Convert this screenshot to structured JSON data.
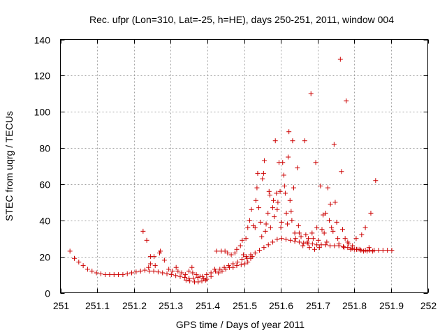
{
  "chart_data": {
    "type": "scatter",
    "title": "Rec. ufpr (Lon=310, Lat=-25, h=HE), days 250-251, 2011, window 004",
    "xlabel": "GPS time / Days of year 2011",
    "ylabel": "STEC from uqrg / TECUs",
    "xlim": [
      251,
      252
    ],
    "ylim": [
      0,
      140
    ],
    "x_ticks": [
      251,
      251.1,
      251.2,
      251.3,
      251.4,
      251.5,
      251.6,
      251.7,
      251.8,
      251.9,
      252
    ],
    "x_tick_labels": [
      "251",
      "251.1",
      "251.2",
      "251.3",
      "251.4",
      "251.5",
      "251.6",
      "251.7",
      "251.8",
      "251.9",
      "252"
    ],
    "y_ticks": [
      0,
      20,
      40,
      60,
      80,
      100,
      120,
      140
    ],
    "y_tick_labels": [
      "0",
      "20",
      "40",
      "60",
      "80",
      "100",
      "120",
      "140"
    ],
    "grid": true,
    "marker": "+",
    "color": "#cc0000",
    "series": [
      {
        "name": "STEC",
        "points": [
          [
            251.026,
            23
          ],
          [
            251.038,
            19
          ],
          [
            251.05,
            17
          ],
          [
            251.062,
            15
          ],
          [
            251.074,
            13
          ],
          [
            251.086,
            12
          ],
          [
            251.098,
            11
          ],
          [
            251.11,
            10.5
          ],
          [
            251.122,
            10
          ],
          [
            251.134,
            10
          ],
          [
            251.146,
            10
          ],
          [
            251.158,
            10
          ],
          [
            251.17,
            10
          ],
          [
            251.182,
            10.5
          ],
          [
            251.194,
            11
          ],
          [
            251.206,
            11.5
          ],
          [
            251.218,
            12
          ],
          [
            251.23,
            12.5
          ],
          [
            251.242,
            12
          ],
          [
            251.254,
            12
          ],
          [
            251.266,
            11.5
          ],
          [
            251.278,
            11
          ],
          [
            251.29,
            10.5
          ],
          [
            251.302,
            10
          ],
          [
            251.314,
            9.5
          ],
          [
            251.326,
            9
          ],
          [
            251.338,
            8.5
          ],
          [
            251.35,
            8
          ],
          [
            251.362,
            8
          ],
          [
            251.374,
            8.5
          ],
          [
            251.386,
            9
          ],
          [
            251.398,
            10
          ],
          [
            251.41,
            11
          ],
          [
            251.422,
            12
          ],
          [
            251.434,
            13
          ],
          [
            251.446,
            14
          ],
          [
            251.458,
            15
          ],
          [
            251.47,
            16
          ],
          [
            251.482,
            17
          ],
          [
            251.494,
            18.5
          ],
          [
            251.506,
            20
          ],
          [
            251.518,
            21
          ],
          [
            251.53,
            22
          ],
          [
            251.542,
            23.5
          ],
          [
            251.554,
            25
          ],
          [
            251.566,
            26.5
          ],
          [
            251.578,
            28
          ],
          [
            251.59,
            29.5
          ],
          [
            251.602,
            30
          ],
          [
            251.614,
            29.5
          ],
          [
            251.626,
            29
          ],
          [
            251.638,
            28.5
          ],
          [
            251.65,
            28
          ],
          [
            251.662,
            27.5
          ],
          [
            251.674,
            27
          ],
          [
            251.686,
            27
          ],
          [
            251.698,
            26.5
          ],
          [
            251.71,
            26.5
          ],
          [
            251.722,
            26.5
          ],
          [
            251.734,
            26
          ],
          [
            251.746,
            26
          ],
          [
            251.758,
            26
          ],
          [
            251.77,
            25.5
          ],
          [
            251.782,
            25
          ],
          [
            251.794,
            24.5
          ],
          [
            251.806,
            24
          ],
          [
            251.818,
            23.5
          ],
          [
            251.83,
            23.5
          ],
          [
            251.842,
            23.5
          ],
          [
            251.854,
            23.5
          ],
          [
            251.866,
            23.5
          ],
          [
            251.878,
            23.5
          ],
          [
            251.89,
            23.5
          ],
          [
            251.902,
            23.5
          ],
          [
            251.225,
            34
          ],
          [
            251.235,
            29
          ],
          [
            251.245,
            20
          ],
          [
            251.255,
            20
          ],
          [
            251.245,
            16
          ],
          [
            251.258,
            15
          ],
          [
            251.27,
            22
          ],
          [
            251.272,
            23
          ],
          [
            251.283,
            18
          ],
          [
            251.24,
            14
          ],
          [
            251.295,
            13
          ],
          [
            251.305,
            12
          ],
          [
            251.315,
            14
          ],
          [
            251.32,
            12
          ],
          [
            251.33,
            11
          ],
          [
            251.34,
            10
          ],
          [
            251.35,
            12
          ],
          [
            251.358,
            14
          ],
          [
            251.36,
            11
          ],
          [
            251.37,
            10
          ],
          [
            251.38,
            9
          ],
          [
            251.39,
            8
          ],
          [
            251.398,
            7.5
          ],
          [
            251.41,
            9
          ],
          [
            251.342,
            7
          ],
          [
            251.352,
            6.5
          ],
          [
            251.365,
            6
          ],
          [
            251.375,
            6
          ],
          [
            251.385,
            6.5
          ],
          [
            251.395,
            7
          ],
          [
            251.42,
            13
          ],
          [
            251.425,
            23
          ],
          [
            251.438,
            23
          ],
          [
            251.448,
            23
          ],
          [
            251.455,
            22
          ],
          [
            251.465,
            21
          ],
          [
            251.475,
            22
          ],
          [
            251.48,
            24
          ],
          [
            251.49,
            26
          ],
          [
            251.495,
            29
          ],
          [
            251.505,
            30
          ],
          [
            251.498,
            21
          ],
          [
            251.508,
            19
          ],
          [
            251.518,
            19
          ],
          [
            251.43,
            11
          ],
          [
            251.44,
            12
          ],
          [
            251.45,
            13
          ],
          [
            251.46,
            14
          ],
          [
            251.47,
            14
          ],
          [
            251.48,
            15
          ],
          [
            251.492,
            15.5
          ],
          [
            251.502,
            16
          ],
          [
            251.51,
            17
          ],
          [
            251.522,
            20
          ],
          [
            251.51,
            36
          ],
          [
            251.515,
            40
          ],
          [
            251.52,
            46
          ],
          [
            251.525,
            37
          ],
          [
            251.53,
            36
          ],
          [
            251.532,
            51
          ],
          [
            251.535,
            58
          ],
          [
            251.537,
            66
          ],
          [
            251.54,
            47
          ],
          [
            251.545,
            39
          ],
          [
            251.548,
            31
          ],
          [
            251.55,
            63
          ],
          [
            251.553,
            66
          ],
          [
            251.555,
            73
          ],
          [
            251.558,
            34
          ],
          [
            251.56,
            38
          ],
          [
            251.565,
            44
          ],
          [
            251.568,
            56
          ],
          [
            251.57,
            54
          ],
          [
            251.572,
            36
          ],
          [
            251.578,
            47
          ],
          [
            251.58,
            51
          ],
          [
            251.582,
            42
          ],
          [
            251.585,
            84
          ],
          [
            251.588,
            55
          ],
          [
            251.59,
            46
          ],
          [
            251.592,
            50
          ],
          [
            251.595,
            72
          ],
          [
            251.598,
            56
          ],
          [
            251.6,
            36
          ],
          [
            251.602,
            39
          ],
          [
            251.605,
            72
          ],
          [
            251.608,
            65
          ],
          [
            251.61,
            59
          ],
          [
            251.612,
            55
          ],
          [
            251.615,
            44
          ],
          [
            251.618,
            38
          ],
          [
            251.62,
            75
          ],
          [
            251.622,
            89
          ],
          [
            251.625,
            51
          ],
          [
            251.628,
            45
          ],
          [
            251.63,
            40
          ],
          [
            251.632,
            84
          ],
          [
            251.635,
            58
          ],
          [
            251.638,
            33
          ],
          [
            251.64,
            30
          ],
          [
            251.645,
            69
          ],
          [
            251.648,
            37
          ],
          [
            251.65,
            33
          ],
          [
            251.655,
            31
          ],
          [
            251.66,
            26
          ],
          [
            251.665,
            84
          ],
          [
            251.668,
            32
          ],
          [
            251.672,
            28
          ],
          [
            251.675,
            30
          ],
          [
            251.678,
            25
          ],
          [
            251.682,
            110
          ],
          [
            251.685,
            33
          ],
          [
            251.688,
            30
          ],
          [
            251.692,
            24
          ],
          [
            251.695,
            72
          ],
          [
            251.698,
            36
          ],
          [
            251.702,
            29
          ],
          [
            251.705,
            25
          ],
          [
            251.708,
            59
          ],
          [
            251.712,
            35
          ],
          [
            251.715,
            43
          ],
          [
            251.718,
            33
          ],
          [
            251.722,
            44
          ],
          [
            251.725,
            28
          ],
          [
            251.728,
            58
          ],
          [
            251.732,
            40
          ],
          [
            251.735,
            49
          ],
          [
            251.738,
            36
          ],
          [
            251.742,
            34
          ],
          [
            251.745,
            82
          ],
          [
            251.748,
            50
          ],
          [
            251.752,
            39
          ],
          [
            251.755,
            30
          ],
          [
            251.758,
            27
          ],
          [
            251.762,
            129
          ],
          [
            251.765,
            67
          ],
          [
            251.768,
            35
          ],
          [
            251.772,
            25
          ],
          [
            251.775,
            30
          ],
          [
            251.778,
            106
          ],
          [
            251.782,
            28
          ],
          [
            251.785,
            27
          ],
          [
            251.79,
            24
          ],
          [
            251.795,
            26
          ],
          [
            251.8,
            24
          ],
          [
            251.805,
            30
          ],
          [
            251.81,
            24
          ],
          [
            251.815,
            24
          ],
          [
            251.82,
            32
          ],
          [
            251.825,
            23
          ],
          [
            251.83,
            36
          ],
          [
            251.835,
            23
          ],
          [
            251.84,
            25
          ],
          [
            251.845,
            44
          ],
          [
            251.85,
            23
          ],
          [
            251.858,
            62
          ]
        ]
      }
    ]
  }
}
